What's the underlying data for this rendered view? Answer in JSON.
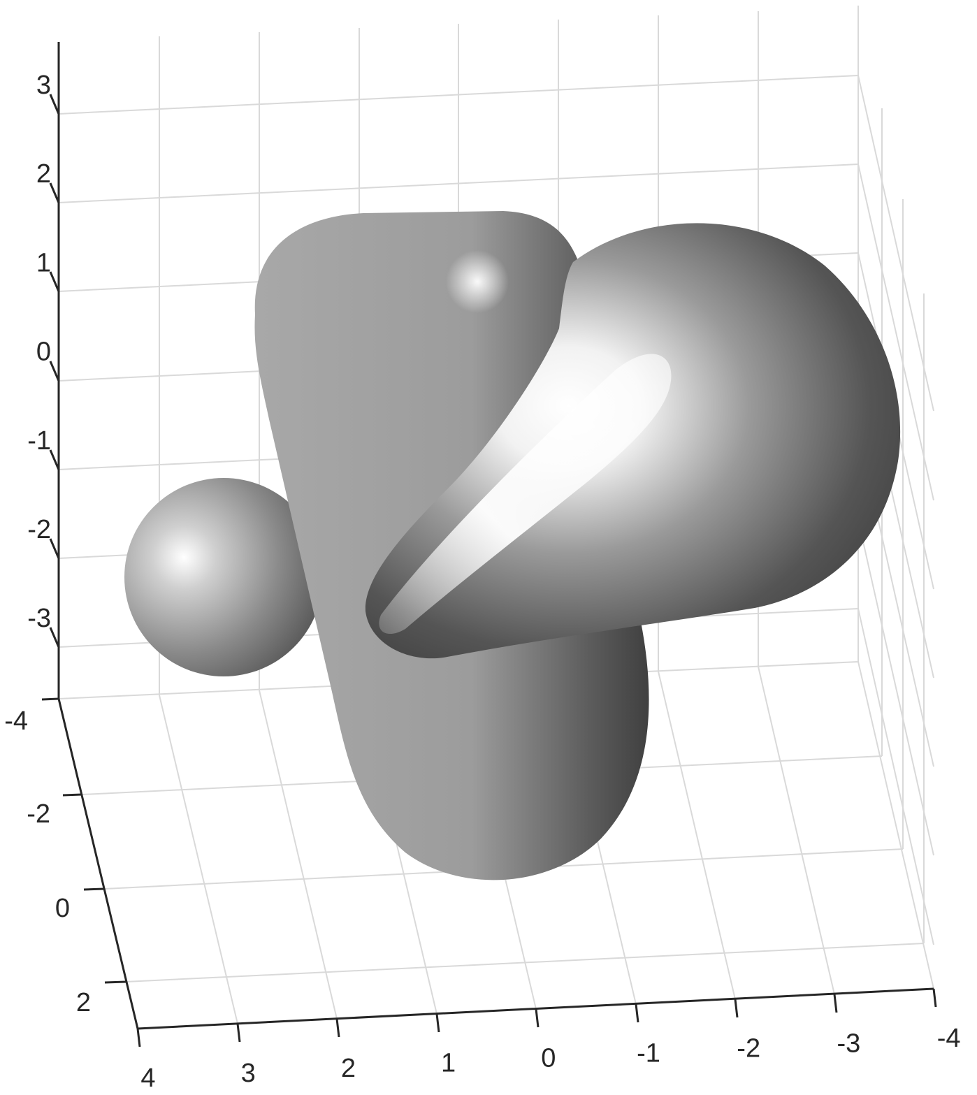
{
  "chart_data": {
    "type": "surface3d",
    "title": "",
    "xlabel": "",
    "ylabel": "",
    "zlabel": "",
    "grid": true,
    "surface_color": "#9a9a9a",
    "x_ticks": [
      "4",
      "3",
      "2",
      "1",
      "0",
      "-1",
      "-2",
      "-3",
      "-4"
    ],
    "y_ticks": [
      "-4",
      "-2",
      "0",
      "2"
    ],
    "z_ticks": [
      "3",
      "2",
      "1",
      "0",
      "-1",
      "-2",
      "-3"
    ],
    "xlim": [
      -4,
      4
    ],
    "ylim": [
      -4,
      3
    ],
    "zlim": [
      -3.5,
      3.5
    ]
  }
}
